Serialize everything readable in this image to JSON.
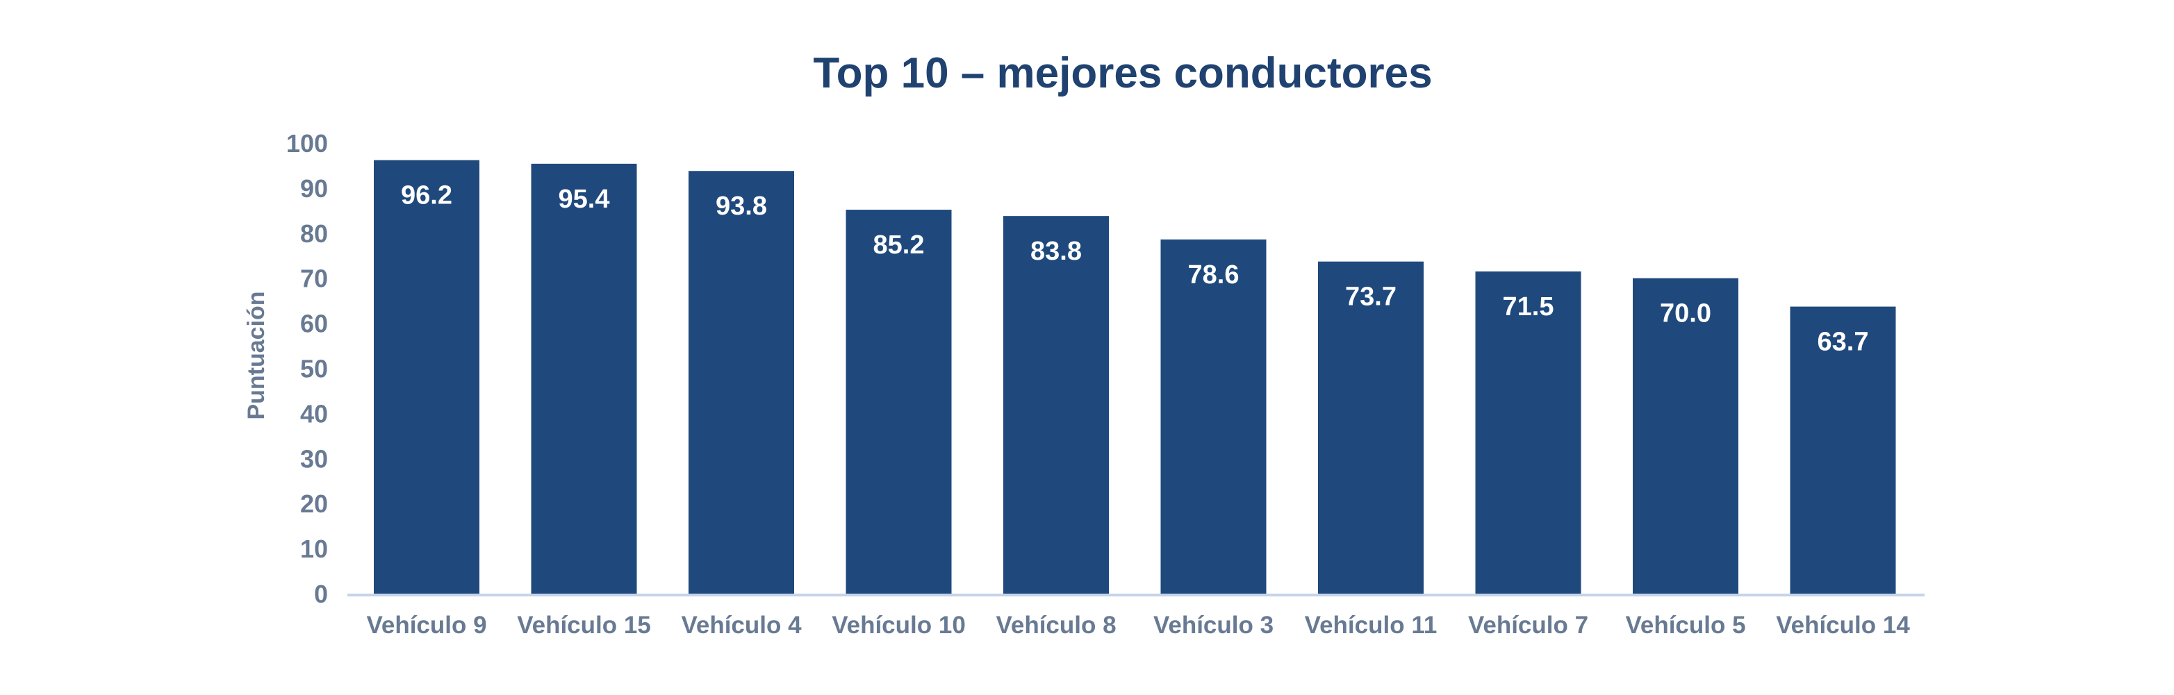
{
  "chart_data": {
    "type": "bar",
    "title": "Top 10 – mejores conductores",
    "xlabel": "",
    "ylabel": "Puntuación",
    "categories": [
      "Vehículo 9",
      "Vehículo 15",
      "Vehículo 4",
      "Vehículo 10",
      "Vehículo 8",
      "Vehículo 3",
      "Vehículo 11",
      "Vehículo 7",
      "Vehículo 5",
      "Vehículo 14"
    ],
    "values": [
      96.2,
      95.4,
      93.8,
      85.2,
      83.8,
      78.6,
      73.7,
      71.5,
      70.0,
      63.7
    ],
    "data_labels": [
      "96.2",
      "95.4",
      "93.8",
      "85.2",
      "83.8",
      "78.6",
      "73.7",
      "71.5",
      "70.0",
      "63.7"
    ],
    "ylim": [
      0,
      100
    ],
    "yticks": [
      0,
      10,
      20,
      30,
      40,
      50,
      60,
      70,
      80,
      90,
      100
    ],
    "grid": false,
    "legend": "none",
    "colors": {
      "bar": "#1f497d",
      "title": "#1f4270",
      "axis_text": "#687a93",
      "axis_line": "#c5d3ea",
      "data_label": "#ffffff"
    }
  }
}
